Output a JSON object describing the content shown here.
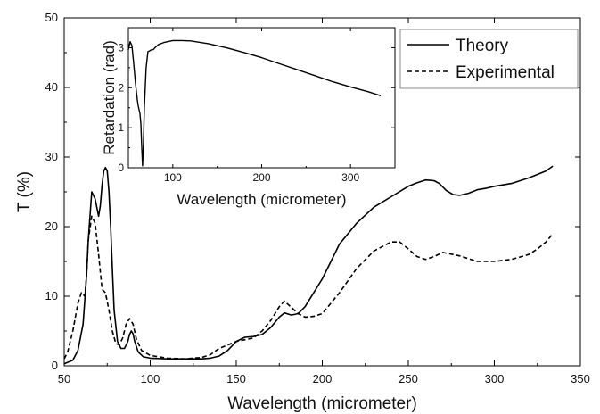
{
  "chart_data": [
    {
      "type": "line",
      "xlabel": "Wavelength (micrometer)",
      "ylabel": "T (%)",
      "xlim": [
        50,
        350
      ],
      "ylim": [
        0,
        50
      ],
      "xticks": [
        50,
        100,
        150,
        200,
        250,
        300,
        350
      ],
      "yticks": [
        0,
        10,
        20,
        30,
        40,
        50
      ],
      "grid": false,
      "legend_position": "top-right",
      "series": [
        {
          "name": "Theory",
          "style": "solid",
          "color": "#000000",
          "x": [
            50,
            55,
            58,
            61,
            63,
            64,
            66,
            68,
            70,
            71,
            72,
            73,
            74,
            75,
            76,
            77,
            78,
            79,
            81,
            83,
            85,
            87,
            88,
            89,
            90,
            91,
            93,
            96,
            100,
            110,
            120,
            130,
            135,
            140,
            145,
            150,
            155,
            160,
            165,
            170,
            175,
            178,
            182,
            186,
            190,
            195,
            200,
            205,
            210,
            215,
            220,
            230,
            240,
            250,
            255,
            260,
            265,
            268,
            272,
            276,
            280,
            285,
            290,
            295,
            300,
            310,
            320,
            325,
            330,
            334
          ],
          "y": [
            0.3,
            0.8,
            2.2,
            6,
            13,
            18,
            25,
            24,
            21.5,
            23,
            26,
            28,
            28.5,
            28,
            25,
            20,
            14,
            8,
            3.5,
            2.5,
            2.5,
            3.5,
            4.5,
            5,
            4.6,
            3.5,
            2,
            1.3,
            1.1,
            1,
            1,
            1,
            1.1,
            1.4,
            2.2,
            3.5,
            4.1,
            4.2,
            4.5,
            5.5,
            7,
            7.6,
            7.3,
            7.5,
            8.5,
            10.5,
            12.5,
            15,
            17.5,
            19,
            20.5,
            22.8,
            24.3,
            25.8,
            26.3,
            26.7,
            26.6,
            26.2,
            25.2,
            24.6,
            24.5,
            24.8,
            25.3,
            25.5,
            25.8,
            26.2,
            27,
            27.5,
            28,
            28.7
          ]
        },
        {
          "name": "Experimental",
          "style": "dashed",
          "color": "#000000",
          "x": [
            50,
            52,
            55,
            58,
            60,
            62,
            63,
            64,
            66,
            68,
            70,
            72,
            74,
            76,
            78,
            80,
            82,
            84,
            86,
            88,
            90,
            92,
            95,
            100,
            110,
            120,
            130,
            135,
            140,
            150,
            160,
            165,
            170,
            175,
            178,
            182,
            186,
            190,
            195,
            200,
            210,
            220,
            230,
            240,
            245,
            250,
            255,
            260,
            265,
            270,
            280,
            290,
            300,
            310,
            320,
            325,
            330,
            334
          ],
          "y": [
            1,
            2,
            5,
            9,
            10.5,
            10,
            13,
            18,
            21.5,
            20.5,
            16,
            11,
            10.5,
            8,
            5,
            3.2,
            3,
            4,
            6,
            6.8,
            6,
            3.8,
            2.2,
            1.5,
            1.1,
            1,
            1.2,
            1.6,
            2.5,
            3.5,
            4,
            5,
            6.5,
            8.5,
            9.3,
            8.4,
            7.5,
            7,
            7.1,
            7.5,
            10.5,
            14,
            16.5,
            17.8,
            17.8,
            16.8,
            15.7,
            15.3,
            15.7,
            16.3,
            15.8,
            15,
            15,
            15.3,
            16,
            16.8,
            17.8,
            19
          ]
        }
      ]
    },
    {
      "type": "line",
      "inset": true,
      "xlabel": "Wavelength (micrometer)",
      "ylabel": "Retardation (rad)",
      "xlim": [
        50,
        350
      ],
      "ylim": [
        0,
        3.5
      ],
      "xticks": [
        100,
        200,
        300
      ],
      "yticks": [
        0,
        1,
        2,
        3
      ],
      "grid": false,
      "series": [
        {
          "style": "solid",
          "color": "#000000",
          "x": [
            50,
            52,
            54,
            56,
            58,
            60,
            61,
            62,
            63,
            64,
            65,
            66,
            67,
            68,
            69,
            70,
            72,
            74,
            76,
            78,
            80,
            84,
            90,
            100,
            110,
            120,
            140,
            160,
            180,
            200,
            220,
            240,
            260,
            280,
            300,
            320,
            334
          ],
          "y": [
            2.95,
            3.15,
            3.05,
            2.6,
            2.1,
            1.7,
            1.55,
            1.45,
            1.35,
            1.1,
            0.55,
            0.05,
            0.6,
            1.5,
            2.0,
            2.5,
            2.9,
            2.92,
            2.95,
            2.95,
            3.0,
            3.08,
            3.13,
            3.18,
            3.18,
            3.17,
            3.1,
            3.0,
            2.88,
            2.75,
            2.6,
            2.45,
            2.3,
            2.15,
            2.02,
            1.9,
            1.8
          ]
        }
      ]
    }
  ]
}
